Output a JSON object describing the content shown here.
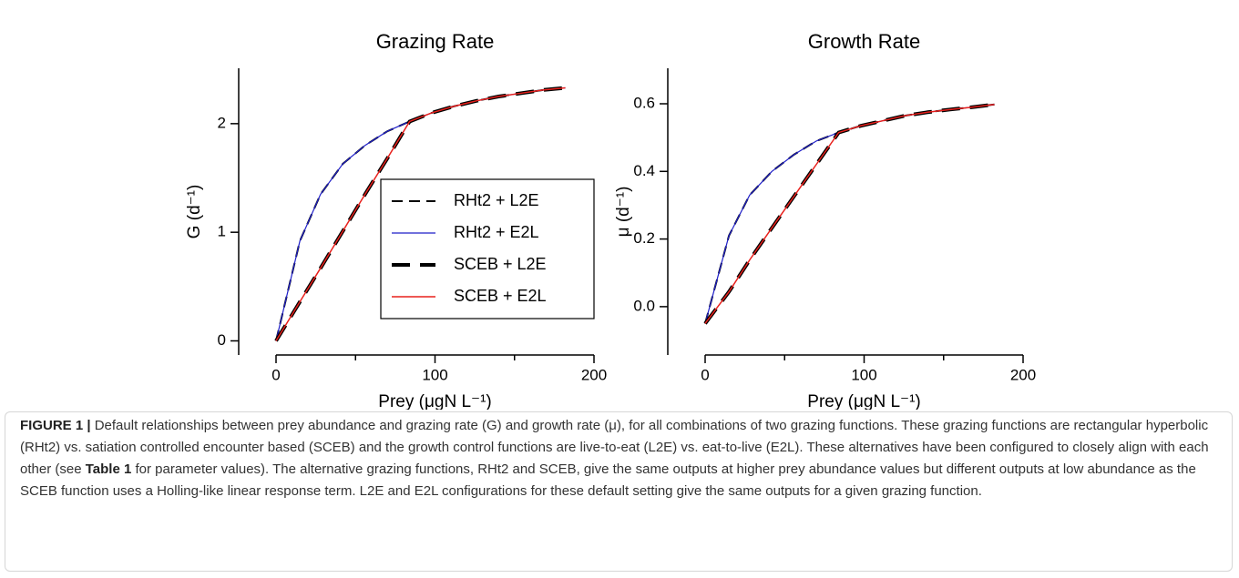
{
  "chart_data": [
    {
      "type": "line",
      "title": "Grazing Rate",
      "xlabel": "Prey (μgN L⁻¹)",
      "ylabel": "G (d⁻¹)",
      "x": [
        0,
        15,
        28,
        42,
        56,
        70,
        84,
        98,
        112,
        126,
        140,
        154,
        168,
        182
      ],
      "xlim": [
        0,
        200
      ],
      "xticks": [
        0,
        100,
        200
      ],
      "xminor_ticks": [
        50,
        150
      ],
      "ylim": [
        -0.13,
        2.51
      ],
      "yticks": [
        0,
        1,
        2
      ],
      "legend": "lower right",
      "series": [
        {
          "name": "RHt2 + L2E",
          "color": "#000000",
          "dashed": true,
          "line_width": 2,
          "values": [
            0,
            0.92,
            1.35,
            1.63,
            1.8,
            1.93,
            2.02,
            2.1,
            2.16,
            2.21,
            2.25,
            2.28,
            2.31,
            2.33
          ]
        },
        {
          "name": "RHt2 + E2L",
          "color": "#1f1fc8",
          "dashed": false,
          "line_width": 1.2,
          "values": [
            0,
            0.92,
            1.35,
            1.63,
            1.8,
            1.93,
            2.02,
            2.1,
            2.16,
            2.21,
            2.25,
            2.28,
            2.31,
            2.33
          ]
        },
        {
          "name": "SCEB + L2E",
          "color": "#000000",
          "dashed": true,
          "line_width": 4,
          "values": [
            0,
            0.36,
            0.67,
            1.01,
            1.35,
            1.68,
            2.02,
            2.1,
            2.16,
            2.21,
            2.25,
            2.28,
            2.31,
            2.33
          ]
        },
        {
          "name": "SCEB + E2L",
          "color": "#e8201c",
          "dashed": false,
          "line_width": 1.5,
          "values": [
            0,
            0.36,
            0.67,
            1.01,
            1.35,
            1.68,
            2.02,
            2.1,
            2.16,
            2.21,
            2.25,
            2.28,
            2.31,
            2.33
          ]
        }
      ]
    },
    {
      "type": "line",
      "title": "Growth Rate",
      "xlabel": "Prey (μgN L⁻¹)",
      "ylabel": "μ (d⁻¹)",
      "x": [
        0,
        15,
        28,
        42,
        56,
        70,
        84,
        98,
        112,
        126,
        140,
        154,
        168,
        182
      ],
      "xlim": [
        0,
        200
      ],
      "xticks": [
        0,
        100,
        200
      ],
      "xminor_ticks": [
        50,
        150
      ],
      "ylim": [
        -0.143,
        0.705
      ],
      "yticks": [
        {
          "value": 0,
          "label": "0.0"
        },
        0.2,
        0.4,
        0.6
      ],
      "series": [
        {
          "name": "RHt2 + L2E",
          "color": "#000000",
          "dashed": true,
          "line_width": 2,
          "values": [
            -0.05,
            0.21,
            0.33,
            0.4,
            0.45,
            0.49,
            0.515,
            0.535,
            0.55,
            0.565,
            0.575,
            0.583,
            0.59,
            0.598
          ]
        },
        {
          "name": "RHt2 + E2L",
          "color": "#1f1fc8",
          "dashed": false,
          "line_width": 1.2,
          "values": [
            -0.05,
            0.21,
            0.33,
            0.4,
            0.45,
            0.49,
            0.515,
            0.535,
            0.55,
            0.565,
            0.575,
            0.583,
            0.59,
            0.598
          ]
        },
        {
          "name": "SCEB + L2E",
          "color": "#000000",
          "dashed": true,
          "line_width": 4,
          "values": [
            -0.05,
            0.044,
            0.138,
            0.233,
            0.327,
            0.421,
            0.515,
            0.535,
            0.55,
            0.565,
            0.575,
            0.583,
            0.59,
            0.598
          ]
        },
        {
          "name": "SCEB + E2L",
          "color": "#e8201c",
          "dashed": false,
          "line_width": 1.5,
          "values": [
            -0.05,
            0.044,
            0.138,
            0.233,
            0.327,
            0.421,
            0.515,
            0.535,
            0.55,
            0.565,
            0.575,
            0.583,
            0.59,
            0.598
          ]
        }
      ]
    }
  ],
  "caption": {
    "label": "FIGURE 1 |",
    "before": "Default relationships between prey abundance and grazing rate (G) and growth rate (μ), for all combinations of two grazing functions. These grazing functions are rectangular hyperbolic (RHt2) vs. satiation controlled encounter based (SCEB) and the growth control functions are live-to-eat (L2E) vs. eat-to-live (E2L). These alternatives have been configured to closely align with each other (see",
    "reference": "Table 1",
    "after": "for parameter values). The alternative grazing functions, RHt2 and SCEB, give the same outputs at higher prey abundance values but different outputs at low abundance as the SCEB function uses a Holling-like linear response term. L2E and E2L configurations for these default setting give the same outputs for a given grazing function."
  }
}
